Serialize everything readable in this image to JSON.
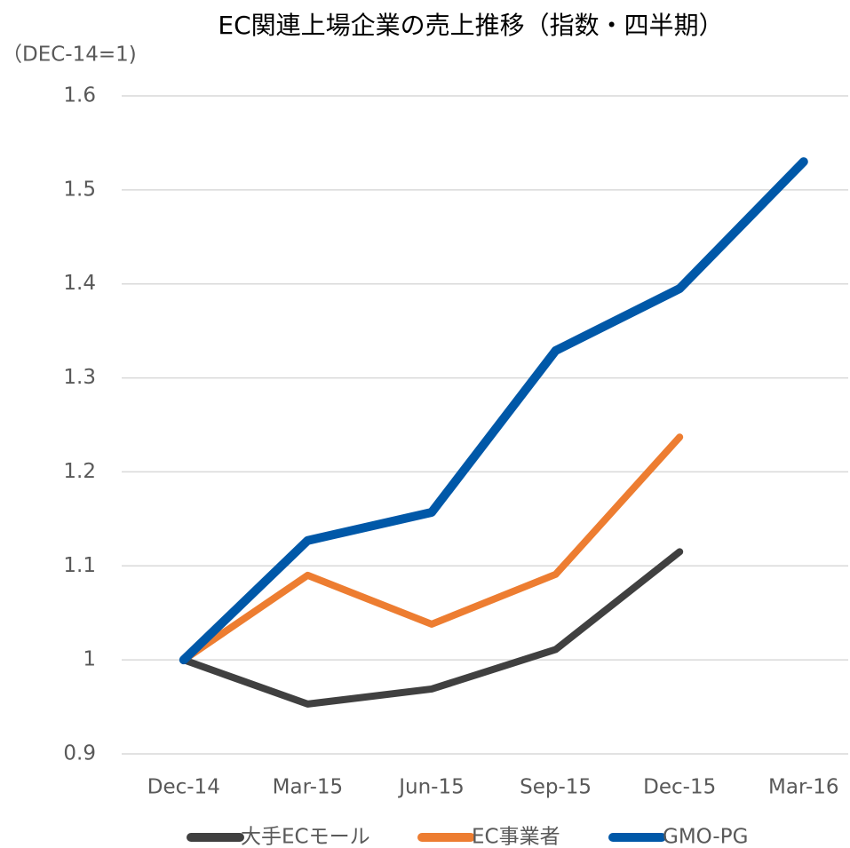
{
  "chart_data": {
    "type": "line",
    "title": "EC関連上場企業の売上推移（指数・四半期）",
    "y_label": "（DEC-14=1)",
    "categories": [
      "Dec-14",
      "Mar-15",
      "Jun-15",
      "Sep-15",
      "Dec-15",
      "Mar-16"
    ],
    "series": [
      {
        "name": "大手ECモール",
        "color": "#404040",
        "values": [
          1.0,
          0.953,
          0.969,
          1.011,
          1.115,
          null
        ]
      },
      {
        "name": "EC事業者",
        "color": "#ed7d31",
        "values": [
          1.0,
          1.09,
          1.038,
          1.091,
          1.237,
          null
        ]
      },
      {
        "name": "GMO-PG",
        "color": "#0058a8",
        "values": [
          1.0,
          1.127,
          1.157,
          1.329,
          1.395,
          1.53
        ]
      }
    ],
    "ylim": [
      0.9,
      1.6
    ],
    "yticks": [
      0.9,
      1,
      1.1,
      1.2,
      1.3,
      1.4,
      1.5,
      1.6
    ],
    "grid": true,
    "legend": "bottom"
  }
}
